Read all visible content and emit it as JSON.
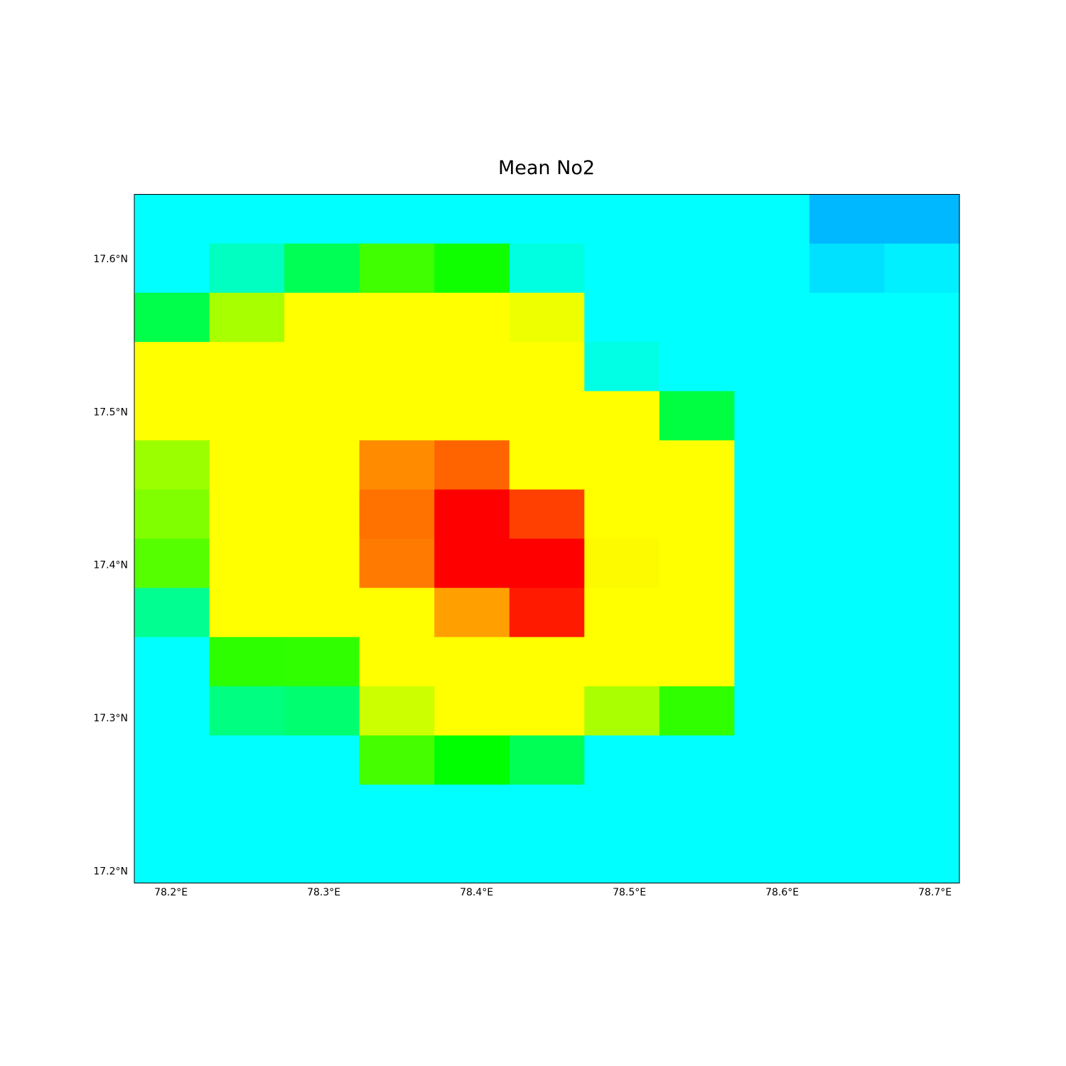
{
  "chart_data": {
    "type": "heatmap",
    "title": "Mean No2",
    "grid": false,
    "xlim": [
      78.176,
      78.716
    ],
    "ylim": [
      17.192,
      17.642
    ],
    "x_ticks": [
      78.2,
      78.3,
      78.4,
      78.5,
      78.6,
      78.7
    ],
    "x_tick_labels": [
      "78.2°E",
      "78.3°E",
      "78.4°E",
      "78.5°E",
      "78.6°E",
      "78.7°E"
    ],
    "y_ticks": [
      17.6,
      17.5,
      17.4,
      17.3,
      17.2
    ],
    "y_tick_labels": [
      "17.6°N",
      "17.5°N",
      "17.4°N",
      "17.3°N",
      "17.2°N"
    ],
    "cell_width_deg": 0.04909,
    "cell_height_deg": 0.03214,
    "columns": 11,
    "rows": 14,
    "cell_colors_top_to_bottom": [
      [
        "#00ffff",
        "#00ffff",
        "#00ffff",
        "#00ffff",
        "#00ffff",
        "#00ffff",
        "#00ffff",
        "#00ffff",
        "#00ffff",
        "#00b8ff",
        "#00b8ff"
      ],
      [
        "#00ffff",
        "#00ffc0",
        "#00ff55",
        "#40ff00",
        "#10ff00",
        "#00ffe0",
        "#00ffff",
        "#00ffff",
        "#00ffff",
        "#00e0ff",
        "#00f0ff"
      ],
      [
        "#00ff4a",
        "#a8ff00",
        "#ffff00",
        "#ffff00",
        "#ffff00",
        "#eeff00",
        "#00ffff",
        "#00ffff",
        "#00ffff",
        "#00ffff",
        "#00ffff"
      ],
      [
        "#ffff00",
        "#ffff00",
        "#ffff00",
        "#ffff00",
        "#ffff00",
        "#ffff00",
        "#00ffe5",
        "#00ffff",
        "#00ffff",
        "#00ffff",
        "#00ffff"
      ],
      [
        "#ffff00",
        "#ffff00",
        "#ffff00",
        "#ffff00",
        "#ffff00",
        "#ffff00",
        "#ffff00",
        "#00ff40",
        "#00ffff",
        "#00ffff",
        "#00ffff"
      ],
      [
        "#9cff00",
        "#ffff00",
        "#ffff00",
        "#ff8c00",
        "#ff6400",
        "#ffff00",
        "#ffff00",
        "#ffff00",
        "#00ffff",
        "#00ffff",
        "#00ffff"
      ],
      [
        "#80ff00",
        "#ffff00",
        "#ffff00",
        "#ff7200",
        "#ff0000",
        "#ff4000",
        "#ffff00",
        "#ffff00",
        "#00ffff",
        "#00ffff",
        "#00ffff"
      ],
      [
        "#55ff00",
        "#ffff00",
        "#ffff00",
        "#ff7a00",
        "#ff0000",
        "#ff0000",
        "#fdfa00",
        "#ffff00",
        "#00ffff",
        "#00ffff",
        "#00ffff"
      ],
      [
        "#00ff90",
        "#ffff00",
        "#ffff00",
        "#ffff00",
        "#ffa000",
        "#ff1a00",
        "#ffff00",
        "#ffff00",
        "#00ffff",
        "#00ffff",
        "#00ffff"
      ],
      [
        "#00ffff",
        "#2dff00",
        "#30ff00",
        "#ffff00",
        "#ffff00",
        "#ffff00",
        "#ffff00",
        "#ffff00",
        "#00ffff",
        "#00ffff",
        "#00ffff"
      ],
      [
        "#00ffff",
        "#00ff80",
        "#00ff70",
        "#ccff00",
        "#ffff00",
        "#ffff00",
        "#aaff00",
        "#30ff00",
        "#00ffff",
        "#00ffff",
        "#00ffff"
      ],
      [
        "#00ffff",
        "#00ffff",
        "#00ffff",
        "#45ff00",
        "#00ff00",
        "#00ff55",
        "#00ffff",
        "#00ffff",
        "#00ffff",
        "#00ffff",
        "#00ffff"
      ],
      [
        "#00ffff",
        "#00ffff",
        "#00ffff",
        "#00ffff",
        "#00ffff",
        "#00ffff",
        "#00ffff",
        "#00ffff",
        "#00ffff",
        "#00ffff",
        "#00ffff"
      ],
      [
        "#00ffff",
        "#00ffff",
        "#00ffff",
        "#00ffff",
        "#00ffff",
        "#00ffff",
        "#00ffff",
        "#00ffff",
        "#00ffff",
        "#00ffff",
        "#00ffff"
      ]
    ]
  }
}
